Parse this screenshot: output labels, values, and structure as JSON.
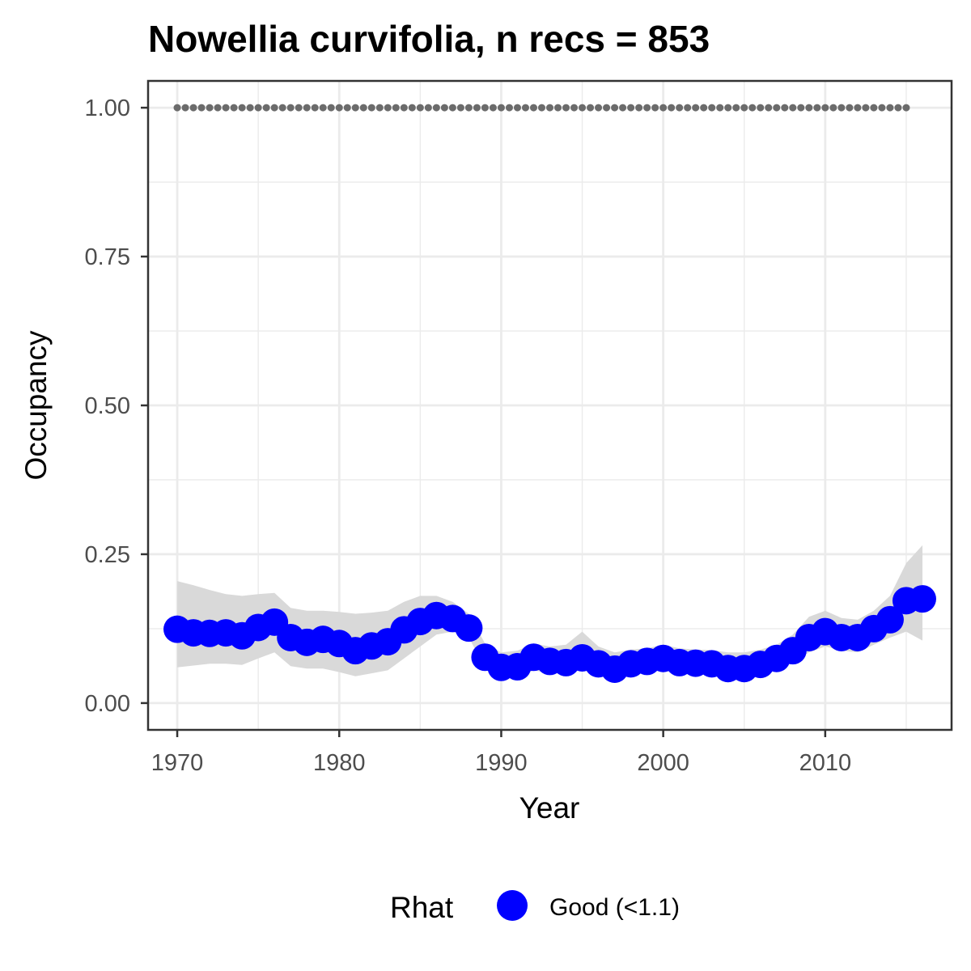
{
  "chart_data": {
    "type": "line",
    "title": "Nowellia curvifolia, n recs = 853",
    "xlabel": "Year",
    "ylabel": "Occupancy",
    "xlim": [
      1968.2,
      2017.8
    ],
    "ylim": [
      -0.045,
      1.045
    ],
    "x_ticks": [
      1970,
      1980,
      1990,
      2000,
      2010
    ],
    "x_tick_labels": [
      "1970",
      "1980",
      "1990",
      "2000",
      "2010"
    ],
    "x_minor_ticks": [
      1975,
      1985,
      1995,
      2005,
      2015
    ],
    "y_ticks": [
      0,
      0.25,
      0.5,
      0.75,
      1
    ],
    "y_tick_labels": [
      "0.00",
      "0.25",
      "0.50",
      "0.75",
      "1.00"
    ],
    "y_minor_ticks": [
      0.125,
      0.375,
      0.625,
      0.875
    ],
    "grid": true,
    "legend": {
      "title": "Rhat",
      "position": "bottom",
      "entries": [
        {
          "label": "Good (<1.1)",
          "color": "#0000ff"
        }
      ]
    },
    "colors": {
      "points": "#0000ff",
      "ribbon": "#d9d9d9",
      "reference": "#6b6b6b",
      "grid": "#ebebeb",
      "border": "#333333"
    },
    "x": [
      1970,
      1971,
      1972,
      1973,
      1974,
      1975,
      1976,
      1977,
      1978,
      1979,
      1980,
      1981,
      1982,
      1983,
      1984,
      1985,
      1986,
      1987,
      1988,
      1989,
      1990,
      1991,
      1992,
      1993,
      1994,
      1995,
      1996,
      1997,
      1998,
      1999,
      2000,
      2001,
      2002,
      2003,
      2004,
      2005,
      2006,
      2007,
      2008,
      2009,
      2010,
      2011,
      2012,
      2013,
      2014,
      2015,
      2016
    ],
    "series": [
      {
        "name": "Good (<1.1)",
        "values": [
          0.124,
          0.118,
          0.117,
          0.118,
          0.113,
          0.127,
          0.136,
          0.11,
          0.102,
          0.107,
          0.1,
          0.088,
          0.096,
          0.103,
          0.123,
          0.137,
          0.147,
          0.142,
          0.126,
          0.077,
          0.06,
          0.061,
          0.077,
          0.07,
          0.068,
          0.076,
          0.066,
          0.057,
          0.066,
          0.07,
          0.075,
          0.068,
          0.067,
          0.066,
          0.058,
          0.058,
          0.065,
          0.075,
          0.088,
          0.11,
          0.12,
          0.11,
          0.11,
          0.125,
          0.14,
          0.172,
          0.175
        ]
      }
    ],
    "ribbon": {
      "lower": [
        0.06,
        0.063,
        0.066,
        0.066,
        0.064,
        0.075,
        0.085,
        0.062,
        0.058,
        0.058,
        0.052,
        0.045,
        0.05,
        0.055,
        0.075,
        0.095,
        0.115,
        0.12,
        0.11,
        0.06,
        0.043,
        0.042,
        0.055,
        0.05,
        0.049,
        0.056,
        0.047,
        0.04,
        0.048,
        0.052,
        0.055,
        0.05,
        0.049,
        0.048,
        0.042,
        0.042,
        0.048,
        0.057,
        0.068,
        0.085,
        0.095,
        0.088,
        0.085,
        0.098,
        0.11,
        0.12,
        0.105
      ],
      "upper": [
        0.205,
        0.198,
        0.19,
        0.183,
        0.18,
        0.183,
        0.185,
        0.16,
        0.155,
        0.155,
        0.153,
        0.15,
        0.152,
        0.155,
        0.17,
        0.18,
        0.18,
        0.17,
        0.15,
        0.1,
        0.085,
        0.088,
        0.1,
        0.095,
        0.098,
        0.12,
        0.095,
        0.085,
        0.09,
        0.092,
        0.098,
        0.092,
        0.09,
        0.089,
        0.085,
        0.085,
        0.09,
        0.098,
        0.115,
        0.145,
        0.155,
        0.143,
        0.14,
        0.155,
        0.18,
        0.235,
        0.265
      ]
    },
    "reference": {
      "x_start": 1970,
      "x_end": 2015,
      "value": 1.0
    }
  }
}
